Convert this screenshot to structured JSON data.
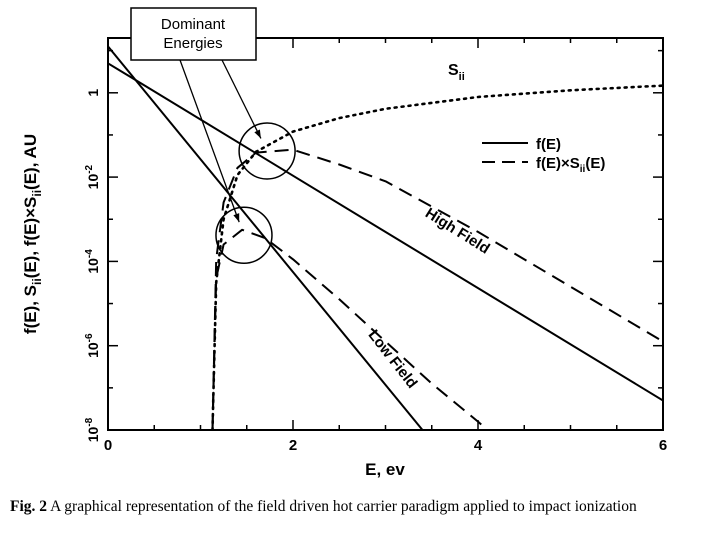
{
  "chart_data": {
    "type": "line",
    "xlabel": "E, ev",
    "ylabel": "f(E), S(E), f(E)×S(E), AU",
    "ylabel_parts": [
      "f(E), S",
      "ii",
      "(E), f(E)×S",
      "ii",
      "(E), AU"
    ],
    "xlim": [
      0,
      6
    ],
    "ylim_log10": [
      -8,
      1.3
    ],
    "log_y": true,
    "x_ticks": [
      "0",
      "2",
      "4",
      "6"
    ],
    "y_ticks": [
      {
        "base": "1",
        "exp": ""
      },
      {
        "base": "10",
        "exp": "-2"
      },
      {
        "base": "10",
        "exp": "-4"
      },
      {
        "base": "10",
        "exp": "-6"
      },
      {
        "base": "10",
        "exp": "-8"
      }
    ],
    "grid": false,
    "legend_position": "top-right",
    "legend": [
      {
        "label": "f(E)",
        "style": "solid"
      },
      {
        "label": "f(E)×S",
        "sub": "ii",
        "suffix": "(E)",
        "style": "dashed"
      }
    ],
    "series": [
      {
        "name": "f(E)",
        "style": "solid",
        "field": "High Field",
        "x": [
          0,
          6
        ],
        "log10_y": [
          0.7,
          -7.3
        ]
      },
      {
        "name": "f(E)",
        "style": "solid",
        "field": "Low Field",
        "x": [
          0,
          3.4
        ],
        "log10_y": [
          1.1,
          -8.0
        ]
      },
      {
        "name": "Sii",
        "style": "dotted",
        "x": [
          1.13,
          1.17,
          1.25,
          1.4,
          1.6,
          2.0,
          2.5,
          3.0,
          4.0,
          5.0,
          6.0
        ],
        "log10_y": [
          -8.0,
          -4.5,
          -3.0,
          -1.95,
          -1.4,
          -0.92,
          -0.6,
          -0.38,
          -0.1,
          0.06,
          0.17
        ]
      },
      {
        "name": "f(E)×Sii(E)",
        "style": "dashed",
        "field": "High Field",
        "x": [
          1.13,
          1.17,
          1.25,
          1.4,
          1.6,
          2.0,
          2.5,
          3.0,
          4.0,
          5.0,
          6.0
        ],
        "log10_y": [
          -8.0,
          -3.95,
          -2.6,
          -1.78,
          -1.42,
          -1.35,
          -1.7,
          -2.1,
          -3.3,
          -4.6,
          -5.9
        ]
      },
      {
        "name": "f(E)×Sii(E)",
        "style": "dashed",
        "field": "Low Field",
        "x": [
          1.13,
          1.17,
          1.25,
          1.45,
          1.7,
          2.0,
          2.5,
          3.0,
          3.5,
          4.0,
          4.1
        ],
        "log10_y": [
          -8.0,
          -4.4,
          -3.6,
          -3.25,
          -3.45,
          -3.95,
          -4.9,
          -5.9,
          -6.9,
          -7.8,
          -8.0
        ]
      }
    ],
    "annotations": {
      "sii_label": "S",
      "sii_sub": "ii",
      "high_field": "High Field",
      "low_field": "Low Field",
      "dominant_line1": "Dominant",
      "dominant_line2": "Energies",
      "dominant_points": [
        {
          "x": 1.72,
          "log10_y": -1.38
        },
        {
          "x": 1.47,
          "log10_y": -3.38
        }
      ]
    }
  },
  "caption": {
    "figure": "Fig. 2",
    "text": "A graphical representation of the field driven hot carrier paradigm applied to impact ionization"
  }
}
